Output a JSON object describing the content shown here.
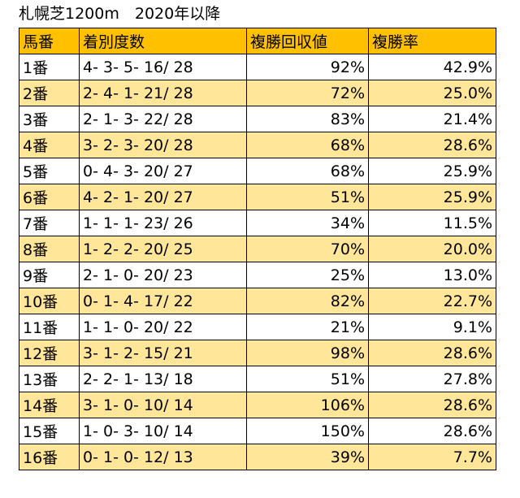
{
  "title": "札幌芝1200m　2020年以降",
  "columns": [
    "馬番",
    "着別度数",
    "複勝回収値",
    "複勝率"
  ],
  "rows": [
    {
      "gate": "1番",
      "record": "4- 3- 5- 16/ 28",
      "return": "92%",
      "rate": "42.9%"
    },
    {
      "gate": "2番",
      "record": "2- 4- 1- 21/ 28",
      "return": "72%",
      "rate": "25.0%"
    },
    {
      "gate": "3番",
      "record": "2- 1- 3- 22/ 28",
      "return": "83%",
      "rate": "21.4%"
    },
    {
      "gate": "4番",
      "record": "3- 2- 3- 20/ 28",
      "return": "68%",
      "rate": "28.6%"
    },
    {
      "gate": "5番",
      "record": "0- 4- 3- 20/ 27",
      "return": "68%",
      "rate": "25.9%"
    },
    {
      "gate": "6番",
      "record": "4- 2- 1- 20/ 27",
      "return": "51%",
      "rate": "25.9%"
    },
    {
      "gate": "7番",
      "record": "1- 1- 1- 23/ 26",
      "return": "34%",
      "rate": "11.5%"
    },
    {
      "gate": "8番",
      "record": "1- 2- 2- 20/ 25",
      "return": "70%",
      "rate": "20.0%"
    },
    {
      "gate": "9番",
      "record": "2- 1- 0- 20/ 23",
      "return": "25%",
      "rate": "13.0%"
    },
    {
      "gate": "10番",
      "record": "0- 1- 4- 17/ 22",
      "return": "82%",
      "rate": "22.7%"
    },
    {
      "gate": "11番",
      "record": "1- 1- 0- 20/ 22",
      "return": "21%",
      "rate": "9.1%"
    },
    {
      "gate": "12番",
      "record": "3- 1- 2- 15/ 21",
      "return": "98%",
      "rate": "28.6%"
    },
    {
      "gate": "13番",
      "record": "2- 2- 1- 13/ 18",
      "return": "51%",
      "rate": "27.8%"
    },
    {
      "gate": "14番",
      "record": "3- 1- 0- 10/ 14",
      "return": "106%",
      "rate": "28.6%"
    },
    {
      "gate": "15番",
      "record": "1- 0- 3- 10/ 14",
      "return": "150%",
      "rate": "28.6%"
    },
    {
      "gate": "16番",
      "record": "0- 1- 0- 12/ 13",
      "return": "39%",
      "rate": "7.7%"
    }
  ],
  "colors": {
    "header_bg": "#ffc000",
    "stripe_bg": "#ffe699",
    "row_bg": "#ffffff",
    "border": "#000000"
  }
}
